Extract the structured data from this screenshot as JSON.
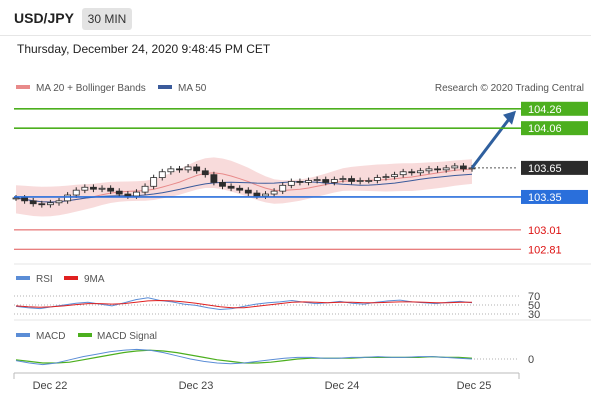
{
  "header": {
    "pair": "USD/JPY",
    "timeframe": "30 MIN"
  },
  "date_text": "Thursday, December 24, 2020 9:48:45 PM CET",
  "legend": {
    "ma20": "MA 20 + Bollinger Bands",
    "ma50": "MA 50",
    "credit": "Research © 2020 Trading Central"
  },
  "colors": {
    "resistance": "#4caf1e",
    "support": "#2a6fdb",
    "minor": "#e05555",
    "current": "#2b2b2b",
    "candle": "#2d2d2d",
    "ma20": "#e88a8a",
    "ma50": "#3b5b9b",
    "band": "#f6cfcf",
    "rsi": "#5b8dd6",
    "rsi_ma": "#e02020",
    "macd": "#5b8dd6",
    "macd_signal": "#4caf1e",
    "arrow": "#2f5f9e"
  },
  "chart_data": {
    "type": "line",
    "title": "",
    "y_range": [
      102.72,
      104.33
    ],
    "x_ticks": [
      "Dec 22",
      "Dec 23",
      "Dec 24",
      "Dec 25"
    ],
    "price_levels": [
      {
        "label": "104.26",
        "value": 104.26,
        "kind": "resistance"
      },
      {
        "label": "104.06",
        "value": 104.06,
        "kind": "resistance"
      },
      {
        "label": "103.65",
        "value": 103.65,
        "kind": "current"
      },
      {
        "label": "103.35",
        "value": 103.35,
        "kind": "support"
      },
      {
        "label": "103.01",
        "value": 103.01,
        "kind": "minor"
      },
      {
        "label": "102.81",
        "value": 102.81,
        "kind": "minor"
      }
    ],
    "close_series": [
      103.34,
      103.31,
      103.28,
      103.27,
      103.29,
      103.31,
      103.37,
      103.42,
      103.45,
      103.43,
      103.44,
      103.41,
      103.38,
      103.36,
      103.4,
      103.46,
      103.55,
      103.61,
      103.64,
      103.63,
      103.66,
      103.62,
      103.58,
      103.5,
      103.46,
      103.44,
      103.42,
      103.39,
      103.36,
      103.38,
      103.41,
      103.47,
      103.51,
      103.5,
      103.52,
      103.53,
      103.5,
      103.53,
      103.54,
      103.51,
      103.52,
      103.52,
      103.55,
      103.56,
      103.58,
      103.61,
      103.6,
      103.62,
      103.64,
      103.63,
      103.65,
      103.67,
      103.64,
      103.65
    ],
    "projection_target": 104.26,
    "rsi": {
      "levels": [
        70,
        50,
        30
      ],
      "rsi": [
        47,
        44,
        42,
        46,
        50,
        54,
        56,
        52,
        48,
        55,
        62,
        66,
        60,
        57,
        52,
        49,
        44,
        40,
        42,
        47,
        52,
        55,
        57,
        60,
        56,
        53,
        55,
        58,
        54,
        52,
        56,
        59,
        61,
        57,
        55,
        53,
        56,
        58,
        55
      ],
      "ma9": [
        48,
        46,
        45,
        46,
        48,
        51,
        53,
        53,
        52,
        53,
        56,
        59,
        60,
        59,
        57,
        54,
        50,
        46,
        44,
        44,
        47,
        50,
        53,
        56,
        57,
        56,
        55,
        56,
        56,
        55,
        55,
        56,
        57,
        57,
        56,
        55,
        55,
        56,
        56
      ]
    },
    "macd": {
      "zero_label": "0",
      "macd": [
        -0.02,
        -0.05,
        -0.07,
        -0.05,
        -0.01,
        0.03,
        0.06,
        0.09,
        0.11,
        0.12,
        0.11,
        0.08,
        0.04,
        0.0,
        -0.03,
        -0.05,
        -0.06,
        -0.05,
        -0.03,
        -0.01,
        0.01,
        0.02,
        0.02,
        0.01,
        0.01,
        0.02,
        0.02,
        0.03,
        0.02,
        0.02,
        0.03,
        0.03,
        0.02,
        0.01,
        0.0
      ],
      "signal": [
        -0.01,
        -0.03,
        -0.05,
        -0.05,
        -0.04,
        -0.01,
        0.02,
        0.05,
        0.08,
        0.1,
        0.11,
        0.1,
        0.08,
        0.05,
        0.02,
        -0.01,
        -0.03,
        -0.05,
        -0.05,
        -0.04,
        -0.02,
        0.0,
        0.01,
        0.01,
        0.01,
        0.01,
        0.02,
        0.02,
        0.02,
        0.02,
        0.02,
        0.03,
        0.02,
        0.02,
        0.01
      ]
    },
    "sub_legends": {
      "rsi": "RSI",
      "rsi_ma": "9MA",
      "macd": "MACD",
      "macd_signal": "MACD Signal"
    }
  }
}
